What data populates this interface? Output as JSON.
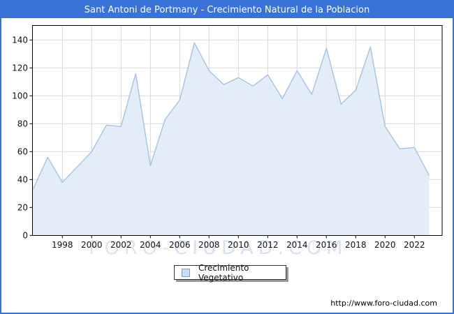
{
  "window": {
    "title": "Sant Antoni de Portmany - Crecimiento Natural de la Poblacion"
  },
  "legend": {
    "label": "Crecimiento Vegetativo"
  },
  "watermark": {
    "part1": "FORO-",
    "part2": "CIUDAD.COM"
  },
  "footer": {
    "url": "http://www.foro-ciudad.com"
  },
  "colors": {
    "titlebar": "#3a73d8",
    "frame_border": "#3a73d8",
    "plot_border": "#000000",
    "grid": "#d8d8d8",
    "line": "#a4c2e6",
    "area_fill": "#e3edf8",
    "tick_label": "#111111",
    "legend_swatch_fill": "#c9def1",
    "legend_swatch_border": "#7a9ec4",
    "watermark_gray": "#e3e3e3",
    "watermark_blue": "#d9e0f4"
  },
  "chart_data": {
    "type": "area",
    "title": "Sant Antoni de Portmany - Crecimiento Natural de la Poblacion",
    "xlabel": "",
    "ylabel": "",
    "x": [
      1996,
      1997,
      1998,
      1999,
      2000,
      2001,
      2002,
      2003,
      2004,
      2005,
      2006,
      2007,
      2008,
      2009,
      2010,
      2011,
      2012,
      2013,
      2014,
      2015,
      2016,
      2017,
      2018,
      2019,
      2020,
      2021,
      2022,
      2023
    ],
    "series": [
      {
        "name": "Crecimiento Vegetativo",
        "values": [
          33,
          56,
          38,
          49,
          60,
          79,
          78,
          116,
          50,
          83,
          97,
          138,
          118,
          108,
          113,
          107,
          115,
          98,
          118,
          101,
          134,
          94,
          104,
          135,
          78,
          62,
          63,
          43
        ]
      }
    ],
    "xticks": [
      1998,
      2000,
      2002,
      2004,
      2006,
      2008,
      2010,
      2012,
      2014,
      2016,
      2018,
      2020,
      2022
    ],
    "yticks": [
      0,
      20,
      40,
      60,
      80,
      100,
      120,
      140
    ],
    "xlim": [
      1996,
      2024
    ],
    "ylim": [
      0,
      150
    ],
    "grid": true,
    "legend_position": "bottom-center"
  }
}
